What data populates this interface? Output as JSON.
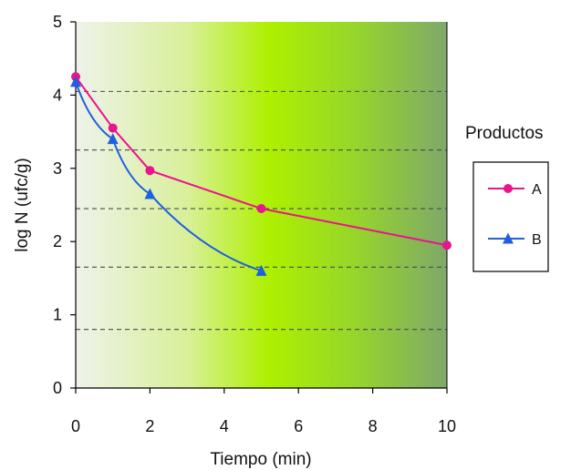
{
  "chart_data": {
    "type": "line",
    "xlabel": "Tiempo (min)",
    "ylabel": "log N (ufc/g)",
    "x_ticks": [
      {
        "value": 0,
        "label": "0"
      },
      {
        "value": 1,
        "label": "2"
      },
      {
        "value": 2,
        "label": "4"
      },
      {
        "value": 3,
        "label": "6"
      },
      {
        "value": 4,
        "label": "8"
      },
      {
        "value": 5,
        "label": "10"
      }
    ],
    "y_ticks": [
      0,
      1,
      2,
      3,
      4,
      5
    ],
    "ylim": [
      0,
      5
    ],
    "gridlines_y": [
      0.8,
      1.65,
      2.45,
      3.25,
      4.05
    ],
    "grid_style": "dashed",
    "legend": {
      "title": "Productos",
      "position": "right"
    },
    "series": [
      {
        "name": "A",
        "color": "#e8158c",
        "marker": "circle",
        "points": [
          {
            "x_label": "0",
            "y": 4.25
          },
          {
            "x_label": "1",
            "y": 3.55
          },
          {
            "x_label": "2",
            "y": 2.97
          },
          {
            "x_label": "5",
            "y": 2.45
          },
          {
            "x_label": "10",
            "y": 1.95
          }
        ]
      },
      {
        "name": "B",
        "color": "#1f5fe0",
        "marker": "triangle",
        "points": [
          {
            "x_label": "0",
            "y": 4.18
          },
          {
            "x_label": "1",
            "y": 3.4
          },
          {
            "x_label": "2",
            "y": 2.65
          },
          {
            "x_label": "5",
            "y": 1.6
          }
        ]
      }
    ]
  }
}
